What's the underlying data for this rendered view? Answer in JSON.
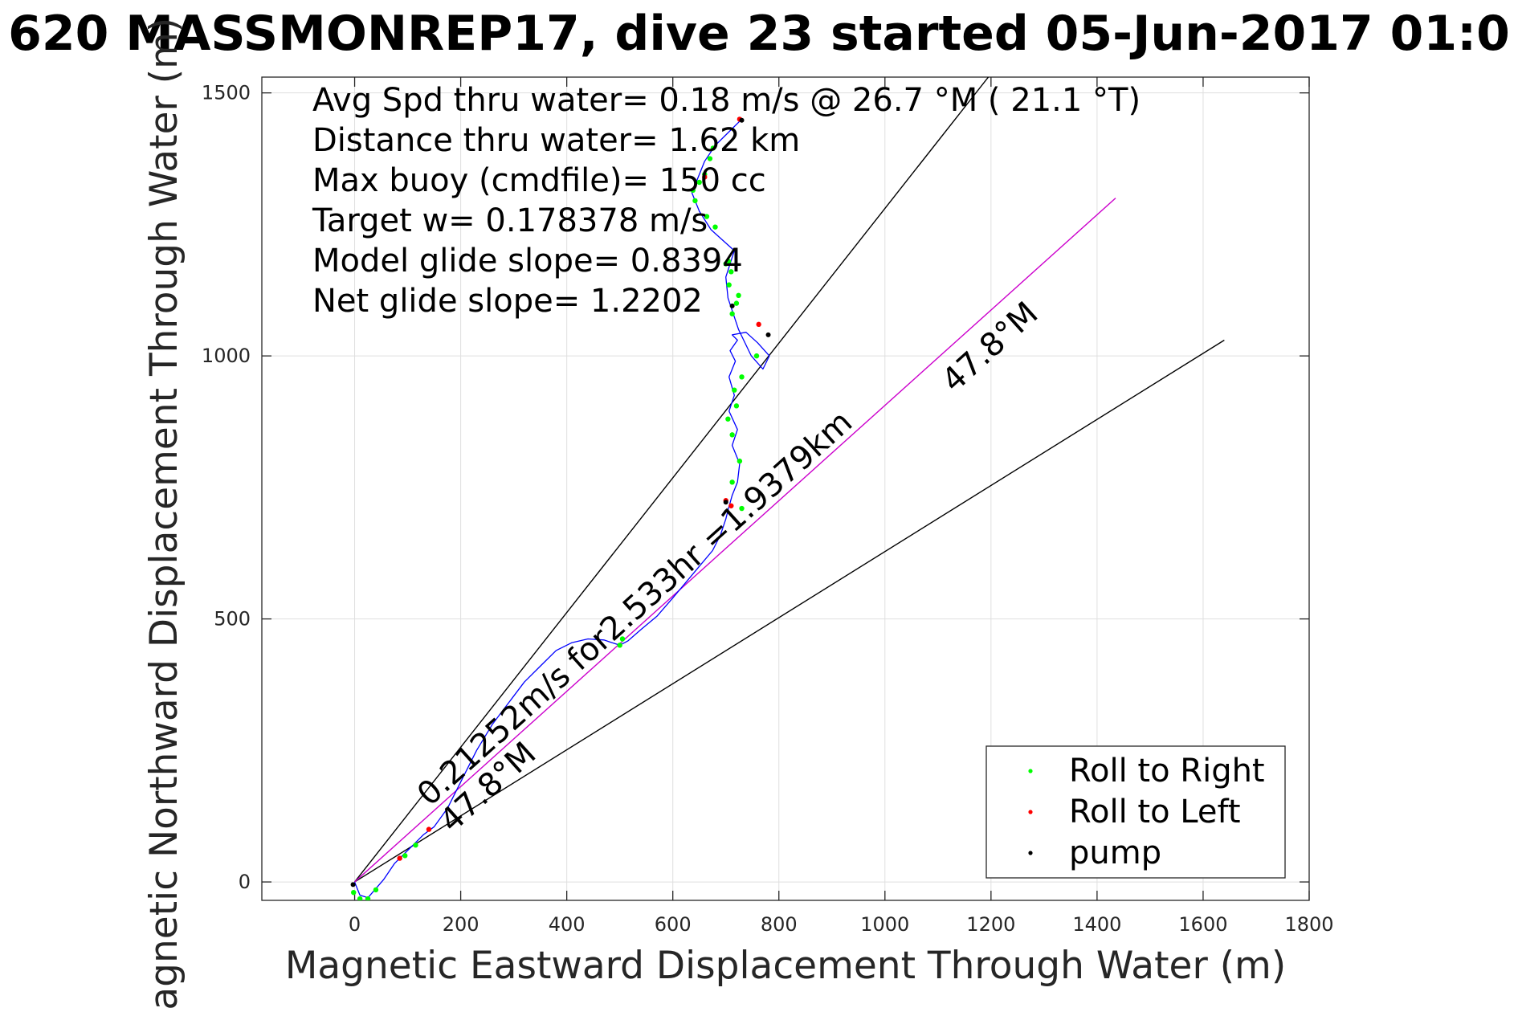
{
  "chart_data": {
    "type": "scatter",
    "title": "620 MASSMONREP17, dive 23 started 05-Jun-2017 01:0",
    "xlabel": "Magnetic Eastward Displacement Through Water (m)",
    "ylabel": "Magnetic Northward Displacement Through Water (m)",
    "xlim": [
      -175,
      1800
    ],
    "ylim": [
      -35,
      1530
    ],
    "grid": true,
    "xticks": [
      0,
      200,
      400,
      600,
      800,
      1000,
      1200,
      1400,
      1600,
      1800
    ],
    "yticks": [
      0,
      500,
      1000,
      1500
    ],
    "xtick_labels": [
      "0",
      "200",
      "400",
      "600",
      "800",
      "1000",
      "1200",
      "1400",
      "1600",
      "1800"
    ],
    "ytick_labels": [
      "0",
      "500",
      "1000",
      "1500"
    ],
    "info_lines": [
      "Avg Spd thru water=  0.18 m/s @  26.7 °M ( 21.1 °T)",
      "Distance thru water=  1.62 km",
      "Max buoy (cmdfile)= 150 cc",
      "Target w= 0.178378 m/s",
      "Model glide slope= 0.8394",
      "Net glide slope= 1.2202"
    ],
    "annotations": {
      "speed_label": "0.21252m/s for2.533hr =1.9379km",
      "heading_near": "47.8°M",
      "heading_far": "47.8°M"
    },
    "cone_lines": [
      {
        "name": "left-bound",
        "x": [
          0,
          1195
        ],
        "y": [
          0,
          1530
        ],
        "color": "#000000"
      },
      {
        "name": "right-bound",
        "x": [
          0,
          1640
        ],
        "y": [
          0,
          1030
        ],
        "color": "#000000"
      },
      {
        "name": "heading",
        "x": [
          0,
          1435
        ],
        "y": [
          0,
          1300
        ],
        "color": "#cc00cc"
      }
    ],
    "track": {
      "name": "track",
      "color": "#0000ff",
      "x": [
        0,
        10,
        25,
        38,
        55,
        75,
        95,
        115,
        130,
        150,
        175,
        200,
        230,
        260,
        290,
        320,
        350,
        380,
        410,
        440,
        470,
        485,
        500,
        515,
        540,
        570,
        600,
        625,
        650,
        675,
        690,
        700,
        705,
        712,
        722,
        726,
        712,
        722,
        706,
        716,
        706,
        718,
        708,
        722,
        712,
        738,
        760,
        782,
        770,
        748,
        724,
        704,
        700,
        716,
        672,
        650,
        636,
        648,
        660,
        680,
        700,
        730
      ],
      "y": [
        0,
        -25,
        -30,
        -15,
        5,
        35,
        55,
        75,
        90,
        105,
        140,
        190,
        250,
        300,
        340,
        380,
        410,
        440,
        455,
        462,
        460,
        455,
        450,
        458,
        480,
        505,
        540,
        570,
        600,
        630,
        660,
        690,
        710,
        735,
        760,
        795,
        830,
        860,
        895,
        925,
        960,
        990,
        1010,
        1030,
        1040,
        1045,
        1025,
        1000,
        975,
        1000,
        1050,
        1110,
        1150,
        1200,
        1240,
        1275,
        1310,
        1340,
        1370,
        1400,
        1420,
        1450
      ]
    },
    "roll_right": {
      "name": "Roll to Right",
      "color": "#00ff00",
      "x": [
        -2,
        10,
        25,
        40,
        95,
        115,
        500,
        505,
        730,
        712,
        726,
        712,
        704,
        720,
        716,
        730,
        758,
        705,
        700,
        710,
        680,
        664,
        642,
        638,
        650,
        660,
        670,
        676,
        712,
        720,
        724,
        706
      ],
      "y": [
        -20,
        -32,
        -32,
        -15,
        50,
        70,
        450,
        462,
        710,
        760,
        800,
        850,
        880,
        905,
        935,
        960,
        1000,
        1180,
        1175,
        1160,
        1245,
        1265,
        1295,
        1315,
        1330,
        1345,
        1375,
        1395,
        1080,
        1100,
        1115,
        1135
      ]
    },
    "roll_left": {
      "name": "Roll to Left",
      "color": "#ff0000",
      "x": [
        85,
        140,
        710,
        700,
        726,
        762,
        660
      ],
      "y": [
        45,
        100,
        715,
        725,
        1450,
        1060,
        1340
      ],
      "color_alt": "#cc0000"
    },
    "pump": {
      "name": "pump",
      "color": "#000000",
      "x": [
        -3,
        700,
        712,
        780,
        730
      ],
      "y": [
        -5,
        722,
        1095,
        1040,
        1448
      ]
    },
    "legend": {
      "position": "bottom-right",
      "entries": [
        {
          "label": "Roll to Right",
          "color": "#00ff00"
        },
        {
          "label": "Roll to Left",
          "color": "#ff0000"
        },
        {
          "label": "pump",
          "color": "#000000"
        }
      ]
    }
  }
}
